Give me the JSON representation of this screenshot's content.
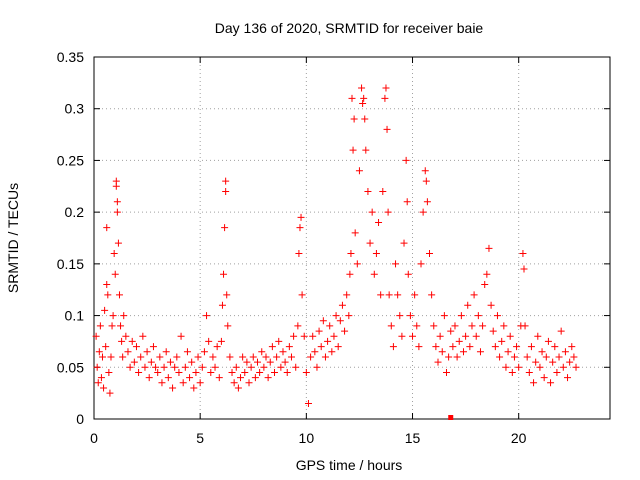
{
  "chart_data": {
    "type": "scatter",
    "title": "Day 136 of 2020, SRMTID for receiver baie",
    "xlabel": "GPS time / hours",
    "ylabel": "SRMTID / TECUs",
    "xlim": [
      0,
      24.3
    ],
    "ylim": [
      0,
      0.35
    ],
    "x_ticks": [
      0,
      5,
      10,
      15,
      20
    ],
    "x_tick_labels": [
      "0",
      "5",
      "10",
      "15",
      "20"
    ],
    "y_ticks": [
      0,
      0.05,
      0.1,
      0.15,
      0.2,
      0.25,
      0.3,
      0.35
    ],
    "y_tick_labels": [
      "0",
      "0.05",
      "0.1",
      "0.15",
      "0.2",
      "0.25",
      "0.3",
      "0.35"
    ],
    "grid": true,
    "marker": "plus",
    "color": "#ff0000",
    "series": [
      {
        "name": "SRMTID",
        "points": [
          [
            0.1,
            0.08
          ],
          [
            0.15,
            0.05
          ],
          [
            0.2,
            0.035
          ],
          [
            0.25,
            0.065
          ],
          [
            0.3,
            0.09
          ],
          [
            0.35,
            0.04
          ],
          [
            0.4,
            0.06
          ],
          [
            0.45,
            0.03
          ],
          [
            0.5,
            0.105
          ],
          [
            0.55,
            0.07
          ],
          [
            0.6,
            0.13
          ],
          [
            0.6,
            0.185
          ],
          [
            0.65,
            0.12
          ],
          [
            0.7,
            0.045
          ],
          [
            0.75,
            0.025
          ],
          [
            0.8,
            0.06
          ],
          [
            0.85,
            0.09
          ],
          [
            0.9,
            0.1
          ],
          [
            0.95,
            0.16
          ],
          [
            1.0,
            0.14
          ],
          [
            1.05,
            0.23
          ],
          [
            1.05,
            0.225
          ],
          [
            1.1,
            0.2
          ],
          [
            1.1,
            0.21
          ],
          [
            1.15,
            0.17
          ],
          [
            1.2,
            0.12
          ],
          [
            1.25,
            0.09
          ],
          [
            1.3,
            0.075
          ],
          [
            1.35,
            0.06
          ],
          [
            1.4,
            0.1
          ],
          [
            1.5,
            0.08
          ],
          [
            1.6,
            0.065
          ],
          [
            1.7,
            0.05
          ],
          [
            1.8,
            0.075
          ],
          [
            1.9,
            0.055
          ],
          [
            2.0,
            0.07
          ],
          [
            2.1,
            0.045
          ],
          [
            2.2,
            0.06
          ],
          [
            2.3,
            0.08
          ],
          [
            2.4,
            0.05
          ],
          [
            2.5,
            0.065
          ],
          [
            2.6,
            0.04
          ],
          [
            2.7,
            0.055
          ],
          [
            2.8,
            0.07
          ],
          [
            2.9,
            0.05
          ],
          [
            3.0,
            0.045
          ],
          [
            3.1,
            0.06
          ],
          [
            3.2,
            0.035
          ],
          [
            3.3,
            0.05
          ],
          [
            3.4,
            0.065
          ],
          [
            3.5,
            0.04
          ],
          [
            3.6,
            0.055
          ],
          [
            3.7,
            0.03
          ],
          [
            3.8,
            0.05
          ],
          [
            3.9,
            0.06
          ],
          [
            4.0,
            0.045
          ],
          [
            4.1,
            0.08
          ],
          [
            4.2,
            0.035
          ],
          [
            4.3,
            0.05
          ],
          [
            4.4,
            0.065
          ],
          [
            4.5,
            0.04
          ],
          [
            4.6,
            0.055
          ],
          [
            4.7,
            0.03
          ],
          [
            4.8,
            0.045
          ],
          [
            4.9,
            0.06
          ],
          [
            5.0,
            0.035
          ],
          [
            5.1,
            0.05
          ],
          [
            5.2,
            0.065
          ],
          [
            5.3,
            0.1
          ],
          [
            5.4,
            0.075
          ],
          [
            5.5,
            0.045
          ],
          [
            5.6,
            0.06
          ],
          [
            5.7,
            0.05
          ],
          [
            5.8,
            0.07
          ],
          [
            5.9,
            0.04
          ],
          [
            6.0,
            0.075
          ],
          [
            6.05,
            0.11
          ],
          [
            6.1,
            0.14
          ],
          [
            6.15,
            0.185
          ],
          [
            6.2,
            0.23
          ],
          [
            6.2,
            0.22
          ],
          [
            6.25,
            0.12
          ],
          [
            6.3,
            0.09
          ],
          [
            6.4,
            0.06
          ],
          [
            6.5,
            0.045
          ],
          [
            6.6,
            0.035
          ],
          [
            6.7,
            0.05
          ],
          [
            6.8,
            0.03
          ],
          [
            6.9,
            0.04
          ],
          [
            7.0,
            0.06
          ],
          [
            7.1,
            0.045
          ],
          [
            7.2,
            0.055
          ],
          [
            7.3,
            0.035
          ],
          [
            7.4,
            0.05
          ],
          [
            7.5,
            0.06
          ],
          [
            7.6,
            0.04
          ],
          [
            7.7,
            0.055
          ],
          [
            7.8,
            0.045
          ],
          [
            7.9,
            0.065
          ],
          [
            8.0,
            0.05
          ],
          [
            8.1,
            0.06
          ],
          [
            8.2,
            0.04
          ],
          [
            8.3,
            0.055
          ],
          [
            8.4,
            0.07
          ],
          [
            8.5,
            0.045
          ],
          [
            8.6,
            0.06
          ],
          [
            8.7,
            0.075
          ],
          [
            8.8,
            0.05
          ],
          [
            8.9,
            0.065
          ],
          [
            9.0,
            0.055
          ],
          [
            9.1,
            0.045
          ],
          [
            9.2,
            0.07
          ],
          [
            9.3,
            0.06
          ],
          [
            9.4,
            0.08
          ],
          [
            9.5,
            0.05
          ],
          [
            9.6,
            0.09
          ],
          [
            9.65,
            0.16
          ],
          [
            9.7,
            0.185
          ],
          [
            9.75,
            0.195
          ],
          [
            9.8,
            0.12
          ],
          [
            9.9,
            0.08
          ],
          [
            10.0,
            0.045
          ],
          [
            10.1,
            0.015
          ],
          [
            10.2,
            0.06
          ],
          [
            10.3,
            0.08
          ],
          [
            10.4,
            0.065
          ],
          [
            10.5,
            0.05
          ],
          [
            10.6,
            0.085
          ],
          [
            10.7,
            0.07
          ],
          [
            10.8,
            0.095
          ],
          [
            10.9,
            0.06
          ],
          [
            11.0,
            0.075
          ],
          [
            11.1,
            0.09
          ],
          [
            11.2,
            0.065
          ],
          [
            11.3,
            0.08
          ],
          [
            11.4,
            0.1
          ],
          [
            11.5,
            0.07
          ],
          [
            11.6,
            0.095
          ],
          [
            11.7,
            0.11
          ],
          [
            11.8,
            0.085
          ],
          [
            11.9,
            0.12
          ],
          [
            12.0,
            0.1
          ],
          [
            12.05,
            0.14
          ],
          [
            12.1,
            0.16
          ],
          [
            12.15,
            0.31
          ],
          [
            12.2,
            0.26
          ],
          [
            12.25,
            0.29
          ],
          [
            12.3,
            0.18
          ],
          [
            12.4,
            0.15
          ],
          [
            12.5,
            0.24
          ],
          [
            12.6,
            0.32
          ],
          [
            12.65,
            0.305
          ],
          [
            12.7,
            0.31
          ],
          [
            12.75,
            0.29
          ],
          [
            12.8,
            0.26
          ],
          [
            12.9,
            0.22
          ],
          [
            13.0,
            0.17
          ],
          [
            13.1,
            0.2
          ],
          [
            13.2,
            0.14
          ],
          [
            13.3,
            0.16
          ],
          [
            13.4,
            0.19
          ],
          [
            13.5,
            0.12
          ],
          [
            13.6,
            0.22
          ],
          [
            13.7,
            0.31
          ],
          [
            13.75,
            0.32
          ],
          [
            13.8,
            0.28
          ],
          [
            13.85,
            0.2
          ],
          [
            13.9,
            0.12
          ],
          [
            14.0,
            0.09
          ],
          [
            14.1,
            0.07
          ],
          [
            14.2,
            0.15
          ],
          [
            14.3,
            0.12
          ],
          [
            14.4,
            0.1
          ],
          [
            14.5,
            0.08
          ],
          [
            14.6,
            0.17
          ],
          [
            14.7,
            0.25
          ],
          [
            14.75,
            0.21
          ],
          [
            14.8,
            0.14
          ],
          [
            14.9,
            0.1
          ],
          [
            15.0,
            0.08
          ],
          [
            15.1,
            0.12
          ],
          [
            15.2,
            0.09
          ],
          [
            15.3,
            0.07
          ],
          [
            15.4,
            0.15
          ],
          [
            15.5,
            0.2
          ],
          [
            15.6,
            0.24
          ],
          [
            15.65,
            0.23
          ],
          [
            15.7,
            0.21
          ],
          [
            15.8,
            0.16
          ],
          [
            15.9,
            0.12
          ],
          [
            16.0,
            0.09
          ],
          [
            16.1,
            0.07
          ],
          [
            16.2,
            0.055
          ],
          [
            16.3,
            0.08
          ],
          [
            16.4,
            0.065
          ],
          [
            16.5,
            0.1
          ],
          [
            16.6,
            0.045
          ],
          [
            16.7,
            0.06
          ],
          [
            16.8,
            0.085
          ],
          [
            16.9,
            0.07
          ],
          [
            17.0,
            0.09
          ],
          [
            17.1,
            0.06
          ],
          [
            17.2,
            0.075
          ],
          [
            17.3,
            0.1
          ],
          [
            17.4,
            0.065
          ],
          [
            17.5,
            0.08
          ],
          [
            17.6,
            0.11
          ],
          [
            17.7,
            0.07
          ],
          [
            17.8,
            0.09
          ],
          [
            17.9,
            0.12
          ],
          [
            18.0,
            0.08
          ],
          [
            18.1,
            0.1
          ],
          [
            18.2,
            0.065
          ],
          [
            18.3,
            0.09
          ],
          [
            18.4,
            0.13
          ],
          [
            18.5,
            0.14
          ],
          [
            18.6,
            0.165
          ],
          [
            18.7,
            0.11
          ],
          [
            18.8,
            0.085
          ],
          [
            18.9,
            0.07
          ],
          [
            19.0,
            0.1
          ],
          [
            19.1,
            0.06
          ],
          [
            19.2,
            0.075
          ],
          [
            19.3,
            0.09
          ],
          [
            19.4,
            0.05
          ],
          [
            19.5,
            0.065
          ],
          [
            19.6,
            0.08
          ],
          [
            19.7,
            0.045
          ],
          [
            19.8,
            0.06
          ],
          [
            19.9,
            0.07
          ],
          [
            20.0,
            0.05
          ],
          [
            20.1,
            0.09
          ],
          [
            20.2,
            0.16
          ],
          [
            20.25,
            0.145
          ],
          [
            20.3,
            0.09
          ],
          [
            20.4,
            0.06
          ],
          [
            20.5,
            0.045
          ],
          [
            20.6,
            0.07
          ],
          [
            20.7,
            0.035
          ],
          [
            20.8,
            0.055
          ],
          [
            20.9,
            0.08
          ],
          [
            21.0,
            0.05
          ],
          [
            21.1,
            0.065
          ],
          [
            21.2,
            0.04
          ],
          [
            21.3,
            0.06
          ],
          [
            21.4,
            0.075
          ],
          [
            21.5,
            0.035
          ],
          [
            21.6,
            0.055
          ],
          [
            21.7,
            0.07
          ],
          [
            21.8,
            0.045
          ],
          [
            21.9,
            0.06
          ],
          [
            22.0,
            0.085
          ],
          [
            22.1,
            0.05
          ],
          [
            22.2,
            0.065
          ],
          [
            22.3,
            0.04
          ],
          [
            22.4,
            0.055
          ],
          [
            22.5,
            0.07
          ],
          [
            22.6,
            0.06
          ],
          [
            22.7,
            0.05
          ]
        ]
      }
    ],
    "outlier_mark": {
      "x": 16.8,
      "y": 0.0
    }
  }
}
